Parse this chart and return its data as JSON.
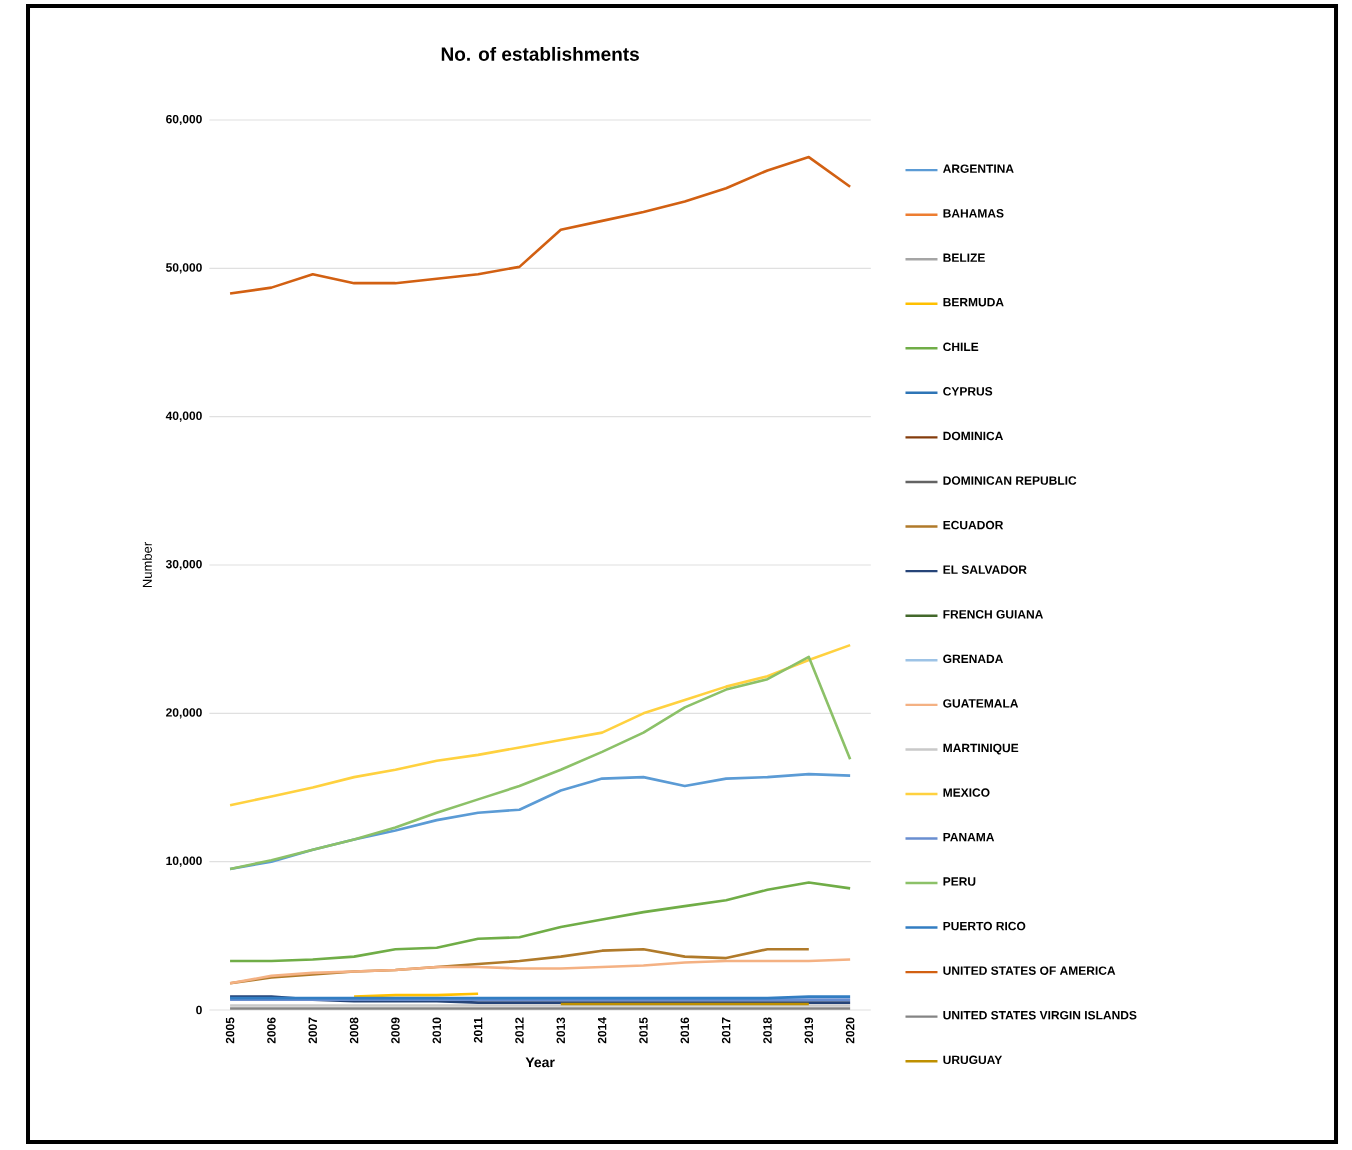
{
  "chart_data": {
    "type": "line",
    "title": "No. of establishments",
    "xlabel": "Year",
    "ylabel": "Number",
    "categories": [
      "2005",
      "2006",
      "2007",
      "2008",
      "2009",
      "2010",
      "2011",
      "2012",
      "2013",
      "2014",
      "2015",
      "2016",
      "2017",
      "2018",
      "2019",
      "2020"
    ],
    "ylim": [
      0,
      60000
    ],
    "yticks": [
      0,
      {
        "value": 10000,
        "label": "10,000"
      },
      {
        "value": 20000,
        "label": "20,000"
      },
      {
        "value": 30000,
        "label": "30,000"
      },
      {
        "value": 40000,
        "label": "40,000"
      },
      {
        "value": 50000,
        "label": "50,000"
      },
      {
        "value": 60000,
        "label": "60,000"
      }
    ],
    "grid": "y",
    "legend": "right",
    "marker": "none",
    "line_style": "solid",
    "series": [
      {
        "name": "ARGENTINA",
        "color": "#5b9bd5",
        "values": [
          9500,
          10000,
          10800,
          11500,
          12100,
          12800,
          13300,
          13500,
          14800,
          15600,
          15700,
          15100,
          15600,
          15700,
          15900,
          15800
        ]
      },
      {
        "name": "BAHAMAS",
        "color": "#ed7d31",
        "values": [
          null,
          null,
          null,
          null,
          null,
          null,
          null,
          null,
          null,
          null,
          null,
          null,
          null,
          null,
          null,
          null
        ]
      },
      {
        "name": "BELIZE",
        "color": "#a5a5a5",
        "values": [
          null,
          null,
          null,
          null,
          null,
          null,
          null,
          null,
          null,
          null,
          null,
          null,
          null,
          null,
          null,
          null
        ]
      },
      {
        "name": "BERMUDA",
        "color": "#ffc000",
        "values": [
          null,
          null,
          null,
          900,
          1000,
          1000,
          1100,
          null,
          null,
          null,
          null,
          null,
          null,
          null,
          null,
          null
        ]
      },
      {
        "name": "CHILE",
        "color": "#70ad47",
        "values": [
          3300,
          3300,
          3400,
          3600,
          4100,
          4200,
          4800,
          4900,
          5600,
          6100,
          6600,
          7000,
          7400,
          8100,
          8600,
          8200
        ]
      },
      {
        "name": "CYPRUS",
        "color": "#2e75b6",
        "values": [
          null,
          null,
          null,
          null,
          null,
          null,
          null,
          null,
          null,
          null,
          null,
          null,
          null,
          null,
          null,
          null
        ]
      },
      {
        "name": "DOMINICA",
        "color": "#843c0c",
        "values": [
          null,
          null,
          null,
          null,
          null,
          null,
          null,
          null,
          null,
          null,
          null,
          null,
          null,
          null,
          null,
          null
        ]
      },
      {
        "name": "DOMINICAN REPUBLIC",
        "color": "#636363",
        "values": [
          null,
          null,
          null,
          null,
          null,
          null,
          null,
          null,
          null,
          null,
          null,
          null,
          null,
          null,
          null,
          null
        ]
      },
      {
        "name": "ECUADOR",
        "color": "#b07a2a",
        "values": [
          1800,
          2200,
          2400,
          2600,
          2700,
          2900,
          3100,
          3300,
          3600,
          4000,
          4100,
          3600,
          3500,
          4100,
          4100,
          null
        ]
      },
      {
        "name": "EL SALVADOR",
        "color": "#264478",
        "values": [
          900,
          900,
          700,
          600,
          600,
          600,
          500,
          500,
          500,
          500,
          500,
          500,
          500,
          500,
          500,
          500
        ]
      },
      {
        "name": "FRENCH GUIANA",
        "color": "#43682b",
        "values": [
          null,
          null,
          null,
          null,
          null,
          null,
          null,
          null,
          null,
          null,
          null,
          null,
          null,
          null,
          null,
          null
        ]
      },
      {
        "name": "GRENADA",
        "color": "#9dc3e6",
        "values": [
          null,
          null,
          null,
          null,
          null,
          null,
          null,
          null,
          null,
          null,
          null,
          null,
          null,
          null,
          null,
          null
        ]
      },
      {
        "name": "GUATEMALA",
        "color": "#f4b183",
        "values": [
          1800,
          2300,
          2500,
          2600,
          2700,
          2900,
          2900,
          2800,
          2800,
          2900,
          3000,
          3200,
          3300,
          3300,
          3300,
          3400
        ]
      },
      {
        "name": "MARTINIQUE",
        "color": "#c9c9c9",
        "values": [
          300,
          300,
          300,
          300,
          300,
          300,
          300,
          300,
          300,
          300,
          300,
          300,
          300,
          300,
          300,
          300
        ]
      },
      {
        "name": "MEXICO",
        "color": "#ffd13f",
        "values": [
          13800,
          14400,
          15000,
          15700,
          16200,
          16800,
          17200,
          17700,
          18200,
          18700,
          20000,
          20900,
          21800,
          22500,
          23600,
          24600
        ]
      },
      {
        "name": "PANAMA",
        "color": "#698ed0",
        "values": [
          700,
          700,
          700,
          700,
          700,
          700,
          700,
          700,
          700,
          700,
          700,
          700,
          700,
          700,
          700,
          700
        ]
      },
      {
        "name": "PERU",
        "color": "#8cc168",
        "values": [
          9500,
          10100,
          10800,
          11500,
          12300,
          13300,
          14200,
          15100,
          16200,
          17400,
          18700,
          20400,
          21600,
          22300,
          23800,
          16900
        ]
      },
      {
        "name": "PUERTO RICO",
        "color": "#327dc2",
        "values": [
          800,
          800,
          800,
          800,
          800,
          800,
          800,
          800,
          800,
          800,
          800,
          800,
          800,
          800,
          900,
          900
        ]
      },
      {
        "name": "UNITED STATES OF AMERICA",
        "color": "#d26012",
        "values": [
          48300,
          48700,
          49600,
          49000,
          49000,
          49300,
          49600,
          50100,
          52600,
          53200,
          53800,
          54500,
          55400,
          56600,
          57500,
          55500
        ]
      },
      {
        "name": "UNITED STATES VIRGIN ISLANDS",
        "color": "#848484",
        "values": [
          100,
          100,
          100,
          100,
          100,
          100,
          100,
          100,
          100,
          100,
          100,
          100,
          100,
          100,
          100,
          100
        ]
      },
      {
        "name": "URUGUAY",
        "color": "#bf9000",
        "values": [
          null,
          null,
          null,
          null,
          null,
          null,
          null,
          null,
          400,
          400,
          400,
          400,
          400,
          400,
          400,
          null
        ]
      }
    ]
  }
}
